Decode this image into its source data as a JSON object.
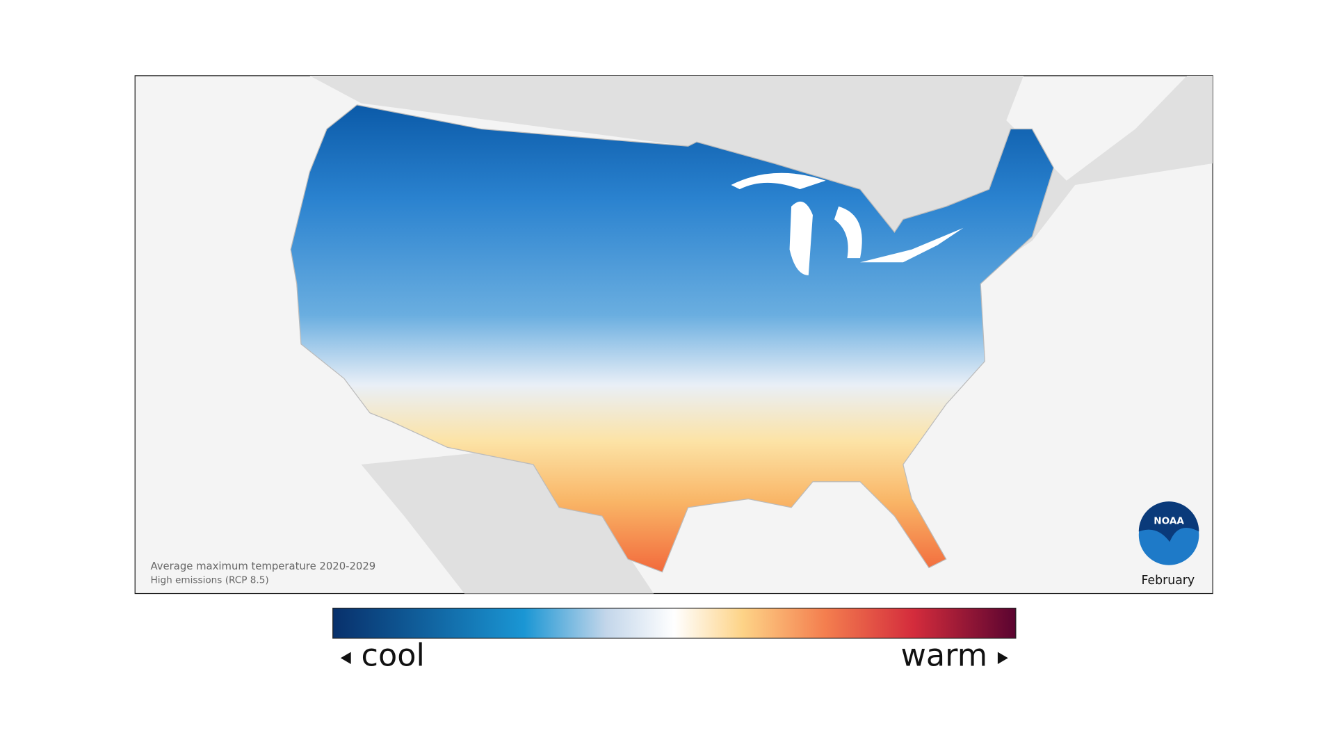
{
  "map": {
    "caption": {
      "title": "Average maximum temperature 2020-2029",
      "subtitle": "High emissions (RCP 8.5)"
    },
    "month": "February",
    "logo": "NOAA"
  },
  "legend": {
    "low_label": "cool",
    "high_label": "warm"
  }
}
